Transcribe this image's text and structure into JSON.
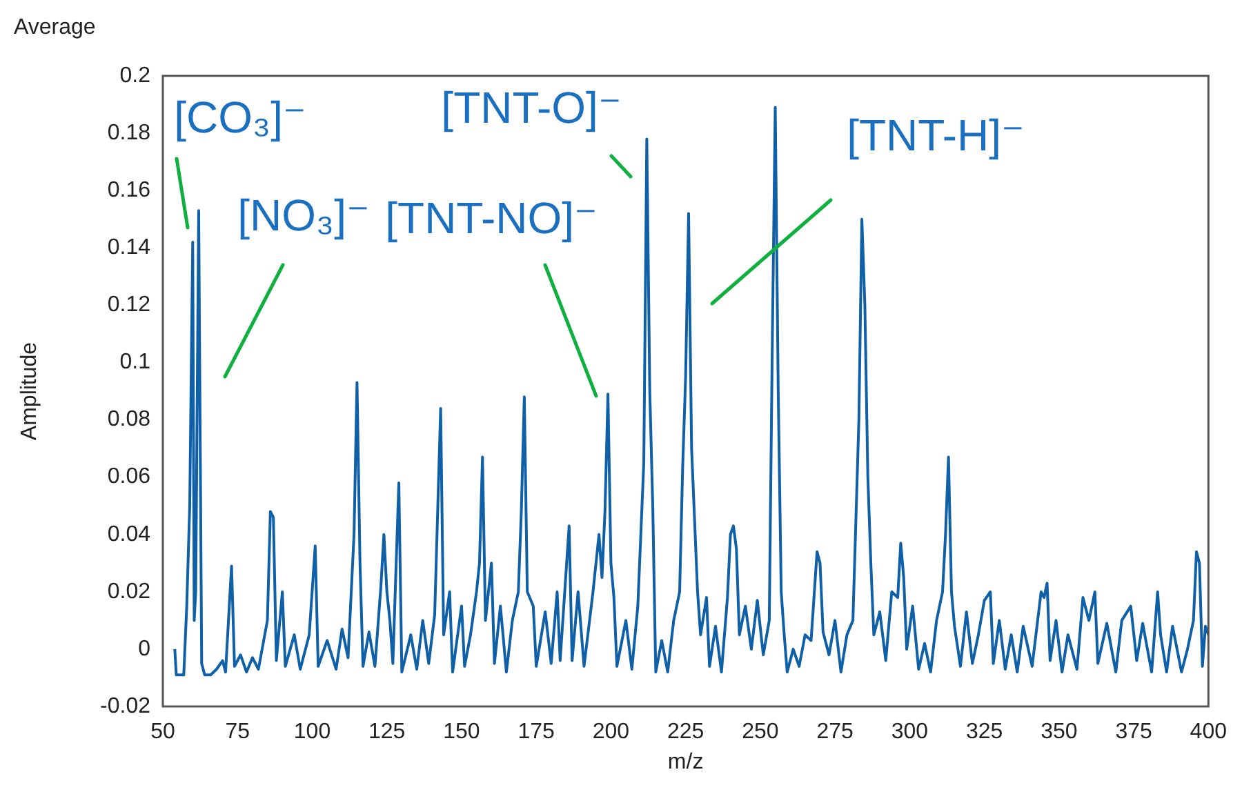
{
  "chart_data": {
    "type": "line",
    "title": "Average",
    "xlabel": "m/z",
    "ylabel": "Amplitude",
    "xlim": [
      50,
      400
    ],
    "xticks": [
      50,
      75,
      100,
      125,
      150,
      175,
      200,
      225,
      250,
      275,
      300,
      325,
      350,
      375,
      400
    ],
    "ylim": [
      -0.02,
      0.2
    ],
    "yticks": [
      -0.02,
      0,
      0.02,
      0.04,
      0.06,
      0.08,
      0.1,
      0.12,
      0.14,
      0.16,
      0.18,
      0.2
    ],
    "grid": false,
    "marker": "none",
    "line_style": "solid",
    "series": [
      {
        "color": "#1060a8",
        "x": [
          54,
          54.5,
          57,
          58,
          59,
          60,
          60.5,
          61,
          62,
          63,
          64,
          66,
          68,
          70,
          71,
          73,
          74,
          76,
          78,
          80,
          82,
          85,
          86,
          87,
          88,
          90,
          91,
          94,
          96,
          99,
          101,
          102,
          105,
          108,
          110,
          112,
          114,
          115,
          116,
          117,
          119,
          121,
          123,
          124,
          125,
          126,
          127,
          129,
          130,
          133,
          135,
          137,
          139,
          141,
          143,
          144,
          146,
          147,
          150,
          151,
          153,
          155,
          156,
          157,
          158,
          160,
          161,
          163,
          165,
          167,
          169,
          170,
          171,
          172,
          174,
          175,
          178,
          180,
          182,
          183,
          186,
          187,
          189,
          191,
          194,
          196,
          197,
          198,
          199,
          200,
          201,
          202,
          205,
          207,
          209,
          210,
          211,
          212,
          213,
          214,
          215,
          217,
          219,
          221,
          223,
          224,
          225,
          226,
          227,
          228,
          229,
          230,
          232,
          233,
          235,
          237,
          239,
          240,
          241,
          242,
          243,
          245,
          247,
          249,
          251,
          253,
          254,
          255,
          256,
          257,
          258,
          259,
          261,
          263,
          265,
          267,
          269,
          270,
          271,
          273,
          275,
          277,
          279,
          281,
          283,
          284,
          285,
          286,
          287,
          288,
          290,
          292,
          294,
          296,
          297,
          298,
          299,
          301,
          303,
          305,
          307,
          309,
          311,
          312,
          313,
          314,
          315,
          317,
          319,
          321,
          323,
          325,
          327,
          328,
          330,
          332,
          334,
          336,
          338,
          341,
          344,
          345,
          346,
          347,
          349,
          351,
          353,
          356,
          358,
          360,
          362,
          363,
          366,
          369,
          371,
          374,
          376,
          378,
          381,
          383,
          384,
          386,
          388,
          391,
          393,
          395,
          396,
          397,
          398,
          399,
          400
        ],
        "values": [
          0,
          -0.009,
          -0.009,
          0.015,
          0.05,
          0.142,
          0.01,
          0.02,
          0.153,
          -0.005,
          -0.009,
          -0.009,
          -0.007,
          -0.004,
          -0.008,
          0.029,
          -0.006,
          -0.002,
          -0.008,
          -0.003,
          -0.007,
          0.01,
          0.048,
          0.046,
          -0.004,
          0.02,
          -0.006,
          0.005,
          -0.007,
          0.005,
          0.036,
          -0.006,
          0.003,
          -0.007,
          0.007,
          -0.003,
          0.04,
          0.093,
          0.03,
          -0.006,
          0.006,
          -0.006,
          0.022,
          0.04,
          0.02,
          0.01,
          -0.005,
          0.058,
          -0.008,
          0.005,
          -0.007,
          0.01,
          -0.005,
          0.012,
          0.084,
          0.005,
          0.02,
          -0.008,
          0.015,
          -0.006,
          0.005,
          0.02,
          0.03,
          0.067,
          0.01,
          0.03,
          -0.005,
          0.015,
          -0.008,
          0.01,
          0.02,
          0.048,
          0.088,
          0.02,
          0.015,
          -0.006,
          0.013,
          -0.005,
          0.02,
          -0.004,
          0.043,
          -0.004,
          0.02,
          -0.006,
          0.02,
          0.04,
          0.025,
          0.048,
          0.089,
          0.03,
          0.018,
          -0.006,
          0.01,
          -0.007,
          0.015,
          0.04,
          0.065,
          0.178,
          0.09,
          0.05,
          -0.008,
          0.003,
          -0.008,
          0.01,
          0.02,
          0.063,
          0.095,
          0.152,
          0.07,
          0.045,
          0.02,
          0.005,
          0.018,
          -0.006,
          0.008,
          -0.008,
          0.018,
          0.04,
          0.043,
          0.035,
          0.005,
          0.015,
          0,
          0.017,
          -0.002,
          0.01,
          0.105,
          0.189,
          0.09,
          0.02,
          0.005,
          -0.008,
          0,
          -0.006,
          0.005,
          0.003,
          0.034,
          0.03,
          0.006,
          -0.002,
          0.01,
          -0.008,
          0.005,
          0.01,
          0.08,
          0.15,
          0.12,
          0.06,
          0.03,
          0.005,
          0.013,
          -0.004,
          0.02,
          0.018,
          0.037,
          0.025,
          0,
          0.015,
          -0.007,
          0.002,
          -0.008,
          0.01,
          0.02,
          0.04,
          0.067,
          0.02,
          0.008,
          -0.006,
          0.013,
          -0.005,
          0.005,
          0.017,
          0.02,
          -0.005,
          0.01,
          -0.007,
          0.005,
          -0.008,
          0.008,
          -0.006,
          0.02,
          0.018,
          0.023,
          -0.004,
          0.01,
          -0.008,
          0.005,
          -0.007,
          0.018,
          0.01,
          0.02,
          -0.005,
          0.009,
          -0.008,
          0.01,
          0.015,
          -0.004,
          0.009,
          -0.008,
          0.02,
          0.005,
          -0.008,
          0.008,
          -0.008,
          0,
          0.01,
          0.034,
          0.03,
          -0.006,
          0.008,
          0.005
        ]
      }
    ],
    "annotations": [
      "[CO₃]⁻",
      "[NO₃]⁻",
      "[TNT-NO]⁻",
      "[TNT-O]⁻",
      "[TNT-H]⁻"
    ]
  }
}
